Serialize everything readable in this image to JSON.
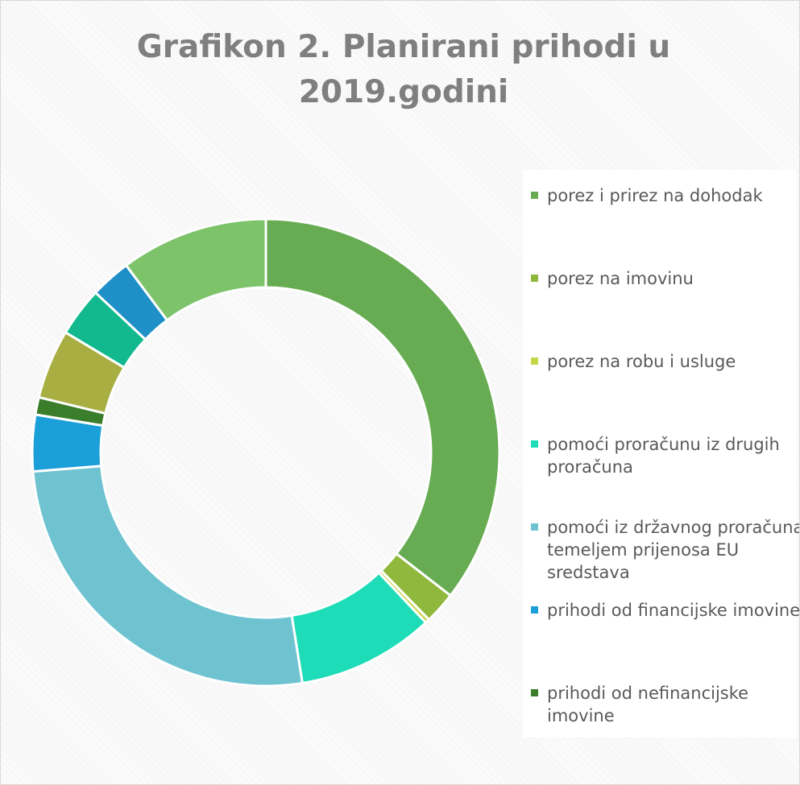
{
  "chart_data": {
    "type": "donut",
    "title": "Grafikon 2. Planirani prihodi u 2019.godini",
    "categories": [
      "porez i prirez na dohodak",
      "porez na imovinu",
      "porez na robu i usluge",
      "pomoći proračunu iz drugih proračuna",
      "pomoći iz državnog proračuna temeljem prijenosa EU sredstava",
      "prihodi od financijske imovine",
      "prihodi od nefinancijske imovine",
      null,
      null,
      null,
      null
    ],
    "values": [
      35.5,
      2.2,
      0.3,
      9.5,
      26.2,
      3.9,
      1.2,
      4.8,
      3.4,
      2.8,
      10.2
    ],
    "colors": [
      "#67ac52",
      "#8fb83c",
      "#c6d64a",
      "#1fdcb8",
      "#6fc3d0",
      "#1a9fd8",
      "#3a7d2a",
      "#a8ae42",
      "#12b98f",
      "#1f8fc7",
      "#7cc36a"
    ],
    "legend": "right"
  }
}
